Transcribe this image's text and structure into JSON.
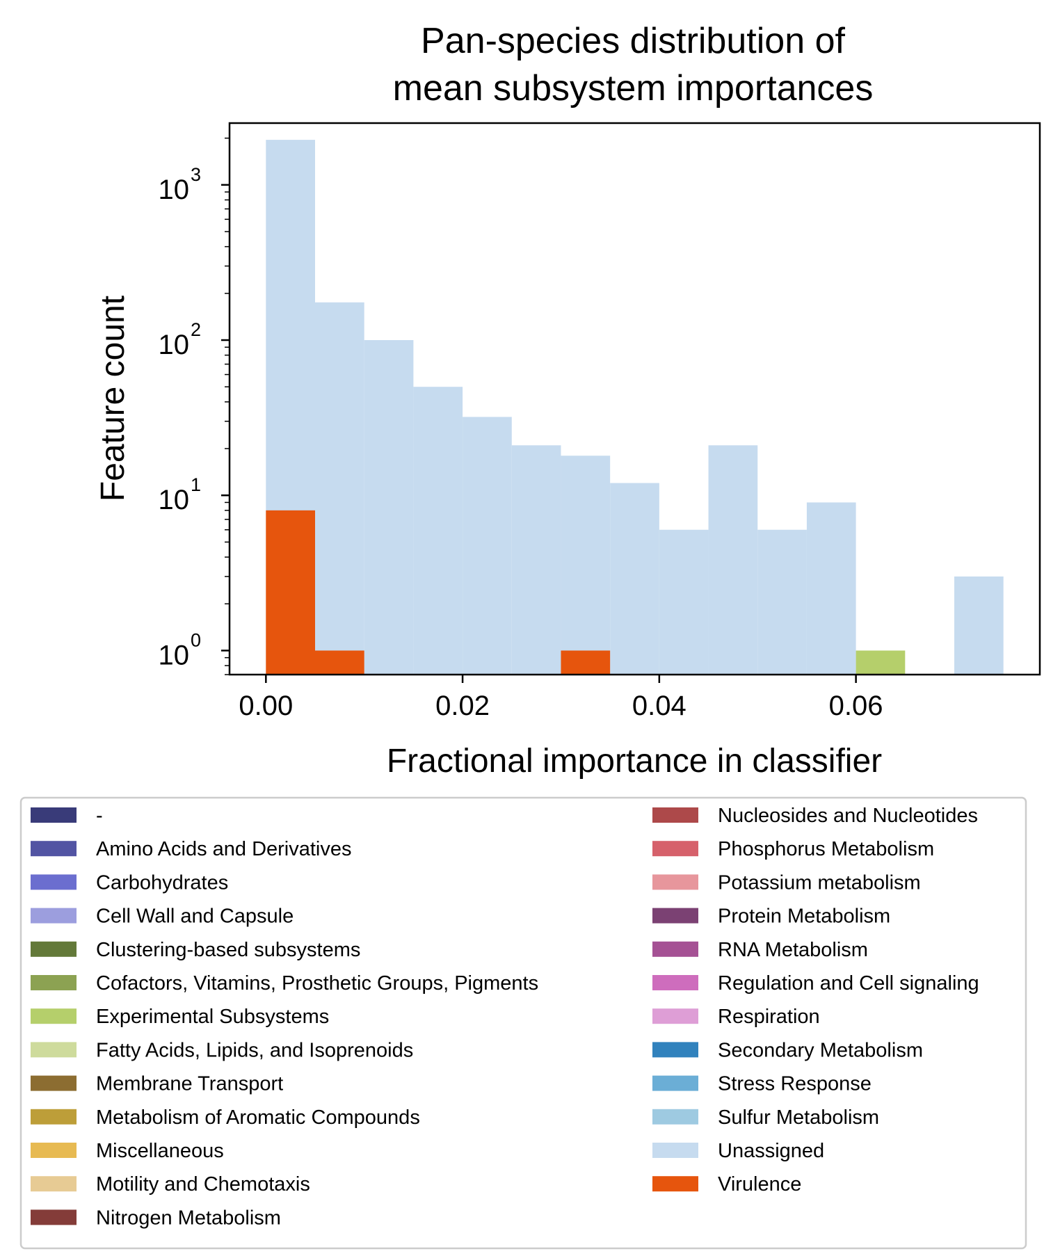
{
  "chart_data": {
    "type": "bar",
    "title": [
      "Pan-species distribution of",
      "mean subsystem importances"
    ],
    "xlabel": "Fractional importance in classifier",
    "ylabel": "Feature count",
    "xlim": [
      -0.0037,
      0.0787
    ],
    "ylim": [
      0.7,
      2500
    ],
    "yscale": "log",
    "xticks": [
      0.0,
      0.02,
      0.04,
      0.06
    ],
    "xtick_labels": [
      "0.00",
      "0.02",
      "0.04",
      "0.06"
    ],
    "yticks": [
      {
        "value": 1,
        "base": "10",
        "exp": "0"
      },
      {
        "value": 10,
        "base": "10",
        "exp": "1"
      },
      {
        "value": 100,
        "base": "10",
        "exp": "2"
      },
      {
        "value": 1000,
        "base": "10",
        "exp": "3"
      }
    ],
    "bin_edges": [
      0.0,
      0.005,
      0.01,
      0.015,
      0.02,
      0.025,
      0.03,
      0.035,
      0.04,
      0.045,
      0.05,
      0.055,
      0.06,
      0.065,
      0.07,
      0.075
    ],
    "series": [
      {
        "name": "Unassigned",
        "color": "#c6dbef",
        "values": [
          1950,
          175,
          100,
          50,
          32,
          21,
          18,
          12,
          6,
          21,
          6,
          9,
          0,
          0,
          3
        ]
      },
      {
        "name": "Virulence",
        "color": "#e6550d",
        "values": [
          8,
          1,
          0,
          0,
          0,
          0,
          1,
          0,
          0,
          0,
          0,
          0,
          0,
          0,
          0
        ]
      },
      {
        "name": "Experimental Subsystems",
        "color": "#b5cf6b",
        "values": [
          0,
          0,
          0,
          0,
          0,
          0,
          0,
          0,
          0,
          0,
          0,
          0,
          1,
          0,
          0
        ]
      }
    ],
    "legend": {
      "placement": "below",
      "columns": 2,
      "entries": [
        {
          "label": "-",
          "color": "#393b79"
        },
        {
          "label": "Amino Acids and Derivatives",
          "color": "#5254a3"
        },
        {
          "label": "Carbohydrates",
          "color": "#6b6ecf"
        },
        {
          "label": "Cell Wall and Capsule",
          "color": "#9c9ede"
        },
        {
          "label": "Clustering-based subsystems",
          "color": "#637939"
        },
        {
          "label": "Cofactors, Vitamins, Prosthetic Groups, Pigments",
          "color": "#8ca252"
        },
        {
          "label": "Experimental Subsystems",
          "color": "#b5cf6b"
        },
        {
          "label": "Fatty Acids, Lipids, and Isoprenoids",
          "color": "#cedb9c"
        },
        {
          "label": "Membrane Transport",
          "color": "#8c6d31"
        },
        {
          "label": "Metabolism of Aromatic Compounds",
          "color": "#bd9e39"
        },
        {
          "label": "Miscellaneous",
          "color": "#e7ba52"
        },
        {
          "label": "Motility and Chemotaxis",
          "color": "#e7cb94"
        },
        {
          "label": "Nitrogen Metabolism",
          "color": "#843c39"
        },
        {
          "label": "Nucleosides and Nucleotides",
          "color": "#ad494a"
        },
        {
          "label": "Phosphorus Metabolism",
          "color": "#d6616b"
        },
        {
          "label": "Potassium metabolism",
          "color": "#e7969c"
        },
        {
          "label": "Protein Metabolism",
          "color": "#7b4173"
        },
        {
          "label": "RNA Metabolism",
          "color": "#a55194"
        },
        {
          "label": "Regulation and Cell signaling",
          "color": "#ce6dbd"
        },
        {
          "label": "Respiration",
          "color": "#de9ed6"
        },
        {
          "label": "Secondary Metabolism",
          "color": "#3182bd"
        },
        {
          "label": "Stress Response",
          "color": "#6baed6"
        },
        {
          "label": "Sulfur Metabolism",
          "color": "#9ecae1"
        },
        {
          "label": "Unassigned",
          "color": "#c6dbef"
        },
        {
          "label": "Virulence",
          "color": "#e6550d"
        }
      ]
    },
    "grid": false
  }
}
